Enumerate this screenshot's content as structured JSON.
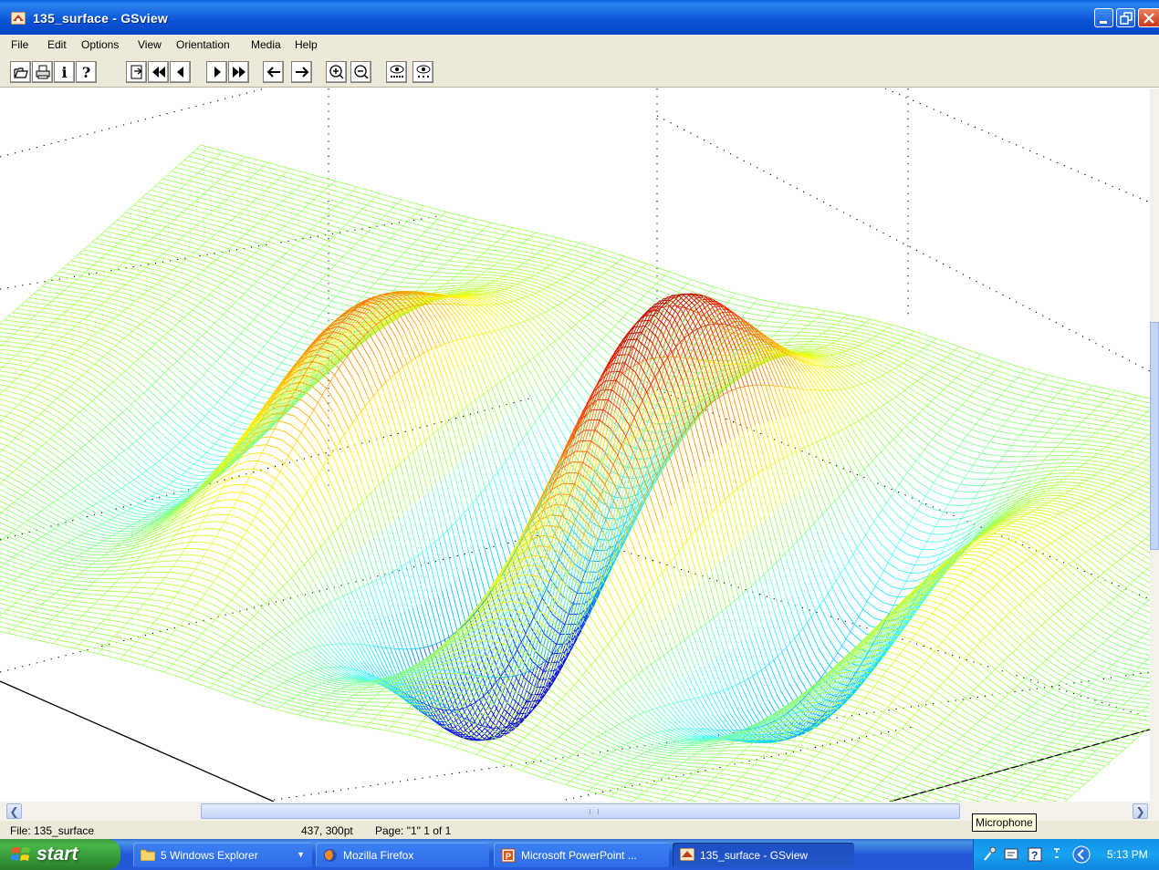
{
  "window": {
    "title": "135_surface - GSview"
  },
  "menu": [
    "File",
    "Edit",
    "Options",
    "View",
    "Orientation",
    "Media",
    "Help"
  ],
  "toolbar": {
    "info_glyph": "i",
    "help_glyph": "?",
    "buttons": [
      "open-icon",
      "print-icon",
      "info-icon",
      "help-icon",
      "goto-page-icon",
      "first-page-icon",
      "previous-page-icon",
      "next-page-icon",
      "last-page-icon",
      "back-icon",
      "forward-icon",
      "zoom-in-icon",
      "zoom-out-icon",
      "find-text-icon",
      "find-next-icon"
    ]
  },
  "document": {
    "colormap": [
      "#0000a0",
      "#0000ff",
      "#00c8ff",
      "#4fffff",
      "#9fff60",
      "#ffff00",
      "#ff9000",
      "#ff2000",
      "#a00000"
    ]
  },
  "status": {
    "file": "File: 135_surface",
    "coords": "437, 300pt",
    "page": "Page: \"1\"  1 of 1"
  },
  "tooltip": "Microphone",
  "taskbar": {
    "start": "start",
    "tasks": [
      {
        "label": "5 Windows Explorer",
        "icon": "folder-icon"
      },
      {
        "label": "Mozilla Firefox",
        "icon": "firefox-icon"
      },
      {
        "label": "Microsoft PowerPoint ...",
        "icon": "powerpoint-icon"
      },
      {
        "label": "135_surface - GSview",
        "icon": "gsview-icon"
      }
    ],
    "clock": "5:13 PM"
  }
}
